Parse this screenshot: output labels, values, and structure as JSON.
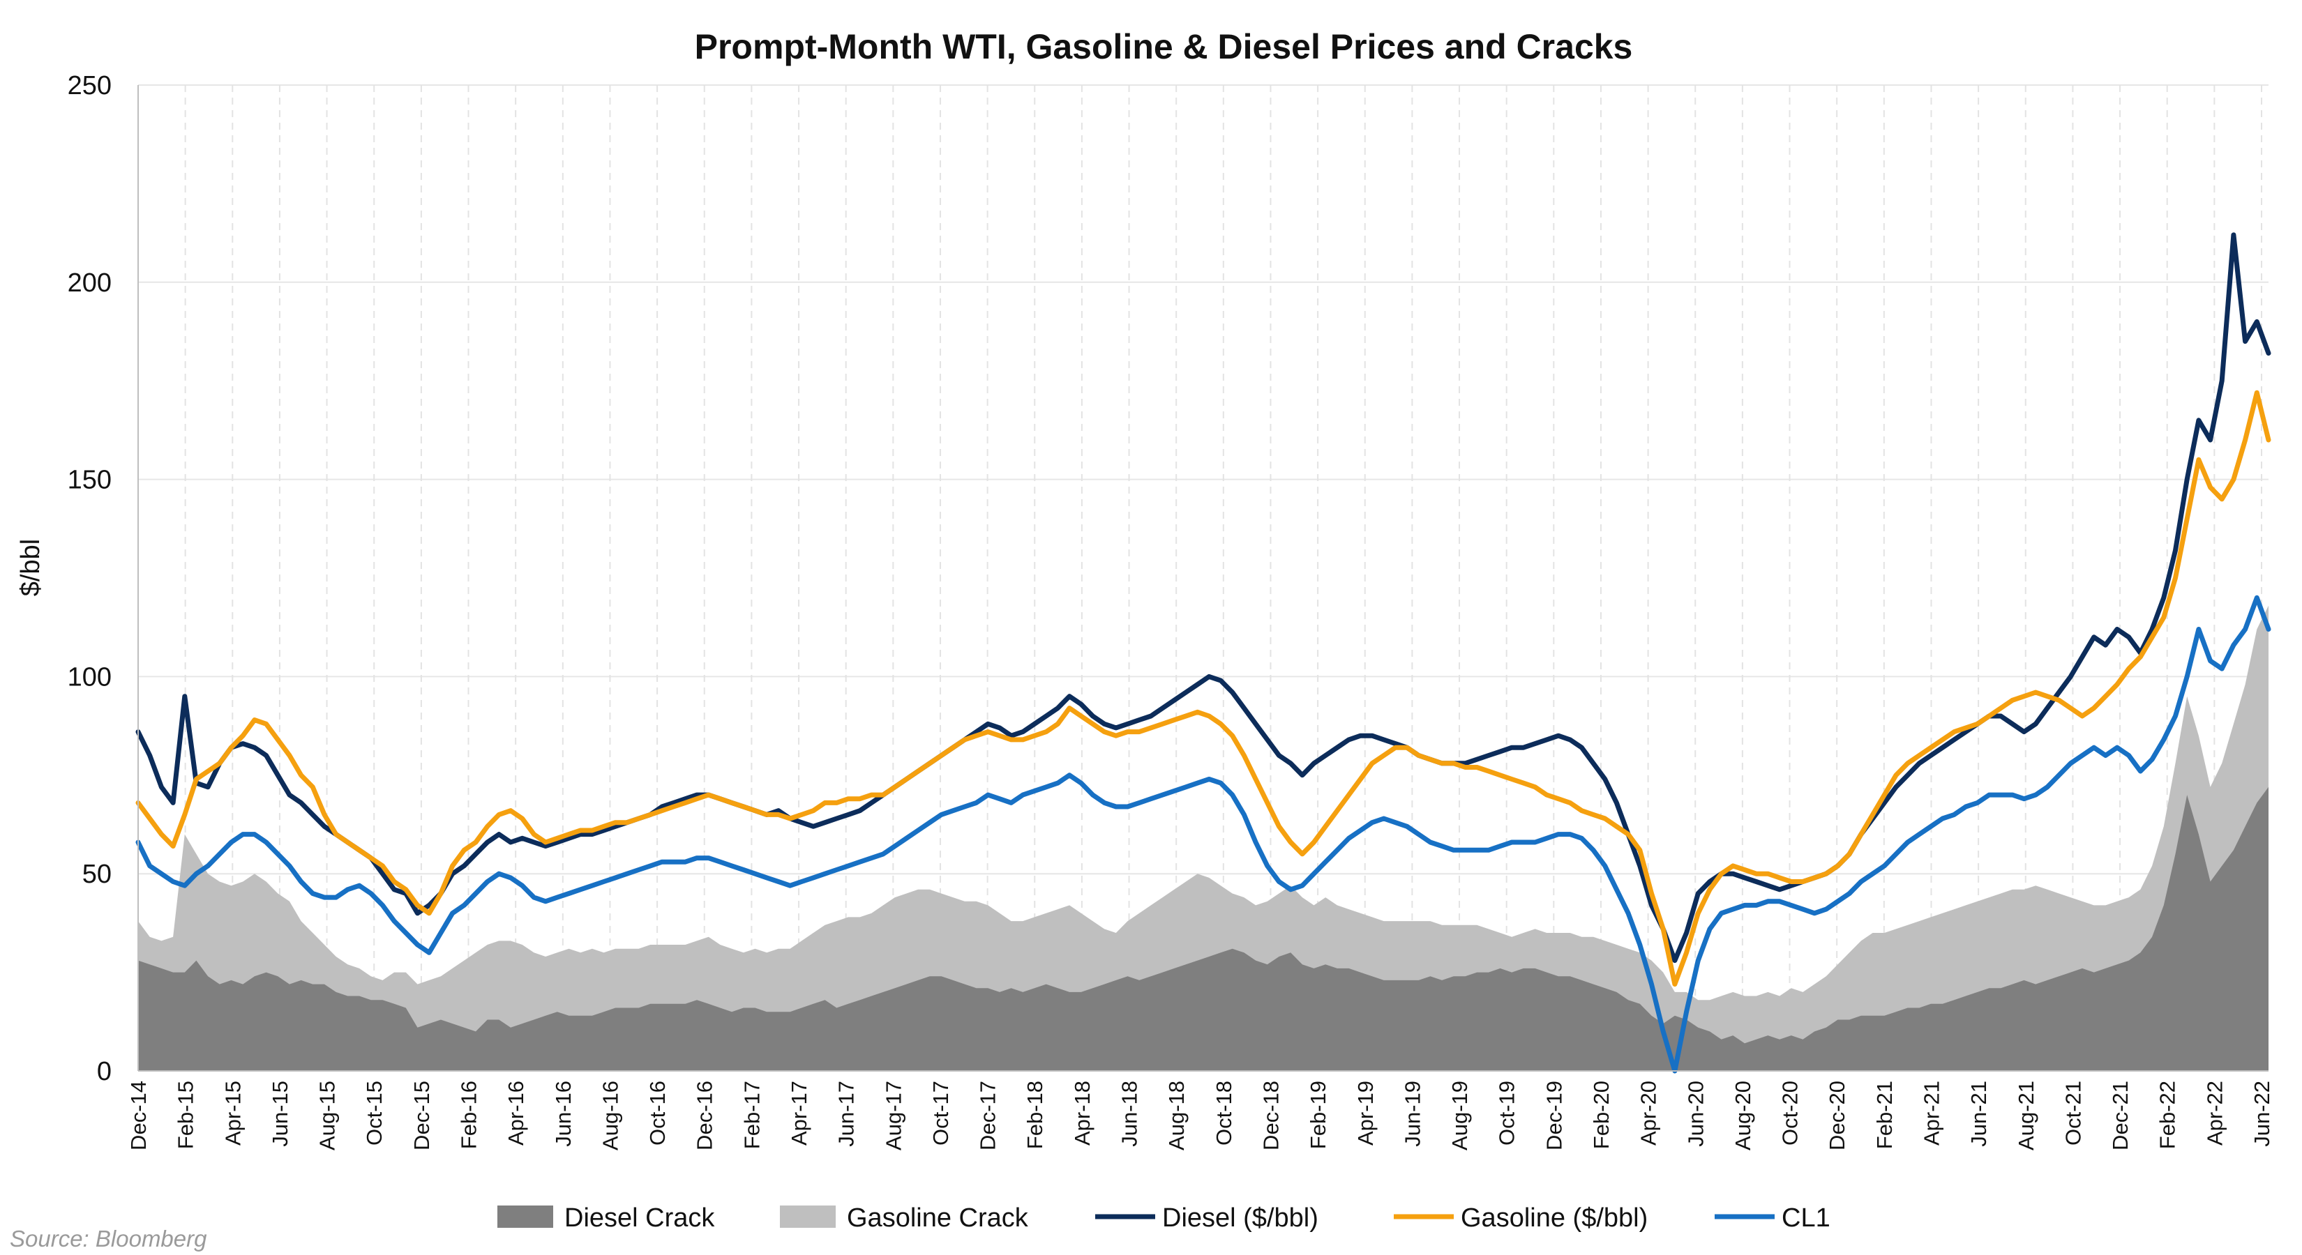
{
  "chart_data": {
    "type": "area",
    "title": "Prompt-Month WTI, Gasoline & Diesel Prices and Cracks",
    "xlabel": "",
    "ylabel": "$/bbl",
    "ylim": [
      0,
      250
    ],
    "yticks": [
      0,
      50,
      100,
      150,
      200,
      250
    ],
    "grid": true,
    "legend_position": "bottom",
    "source": "Source: Bloomberg",
    "x_tick_labels": [
      "Dec-14",
      "Feb-15",
      "Apr-15",
      "Jun-15",
      "Aug-15",
      "Oct-15",
      "Dec-15",
      "Feb-16",
      "Apr-16",
      "Jun-16",
      "Aug-16",
      "Oct-16",
      "Dec-16",
      "Feb-17",
      "Apr-17",
      "Jun-17",
      "Aug-17",
      "Oct-17",
      "Dec-17",
      "Feb-18",
      "Apr-18",
      "Jun-18",
      "Aug-18",
      "Oct-18",
      "Dec-18",
      "Feb-19",
      "Apr-19",
      "Jun-19",
      "Aug-19",
      "Oct-19",
      "Dec-19",
      "Feb-20",
      "Apr-20",
      "Jun-20",
      "Aug-20",
      "Oct-20",
      "Dec-20",
      "Feb-21",
      "Apr-21",
      "Jun-21",
      "Aug-21",
      "Oct-21",
      "Dec-21",
      "Feb-22",
      "Apr-22",
      "Jun-22"
    ],
    "series": [
      {
        "name": "Diesel Crack",
        "type": "area",
        "color": "#7f7f7f",
        "values": [
          28,
          27,
          26,
          25,
          25,
          28,
          24,
          22,
          23,
          22,
          24,
          25,
          24,
          22,
          23,
          22,
          22,
          20,
          19,
          19,
          18,
          18,
          17,
          16,
          11,
          12,
          13,
          12,
          11,
          10,
          13,
          13,
          11,
          12,
          13,
          14,
          15,
          14,
          14,
          14,
          15,
          16,
          16,
          16,
          17,
          17,
          17,
          17,
          18,
          17,
          16,
          15,
          16,
          16,
          15,
          15,
          15,
          16,
          17,
          18,
          16,
          17,
          18,
          19,
          20,
          21,
          22,
          23,
          24,
          24,
          23,
          22,
          21,
          21,
          20,
          21,
          20,
          21,
          22,
          21,
          20,
          20,
          21,
          22,
          23,
          24,
          23,
          24,
          25,
          26,
          27,
          28,
          29,
          30,
          31,
          30,
          28,
          27,
          29,
          30,
          27,
          26,
          27,
          26,
          26,
          25,
          24,
          23,
          23,
          23,
          23,
          24,
          23,
          24,
          24,
          25,
          25,
          26,
          25,
          26,
          26,
          25,
          24,
          24,
          23,
          22,
          21,
          20,
          18,
          17,
          14,
          12,
          14,
          13,
          11,
          10,
          8,
          9,
          7,
          8,
          9,
          8,
          9,
          8,
          10,
          11,
          13,
          13,
          14,
          14,
          14,
          15,
          16,
          16,
          17,
          17,
          18,
          19,
          20,
          21,
          21,
          22,
          23,
          22,
          23,
          24,
          25,
          26,
          25,
          26,
          27,
          28,
          30,
          34,
          42,
          55,
          70,
          60,
          48,
          52,
          56,
          62,
          68,
          72
        ]
      },
      {
        "name": "Gasoline Crack",
        "type": "area",
        "color": "#bfbfbf",
        "values": [
          38,
          34,
          33,
          34,
          60,
          55,
          50,
          48,
          47,
          48,
          50,
          48,
          45,
          43,
          38,
          35,
          32,
          29,
          27,
          26,
          24,
          23,
          25,
          25,
          22,
          23,
          24,
          26,
          28,
          30,
          32,
          33,
          33,
          32,
          30,
          29,
          30,
          31,
          30,
          31,
          30,
          31,
          31,
          31,
          32,
          32,
          32,
          32,
          33,
          34,
          32,
          31,
          30,
          31,
          30,
          31,
          31,
          33,
          35,
          37,
          38,
          39,
          39,
          40,
          42,
          44,
          45,
          46,
          46,
          45,
          44,
          43,
          43,
          42,
          40,
          38,
          38,
          39,
          40,
          41,
          42,
          40,
          38,
          36,
          35,
          38,
          40,
          42,
          44,
          46,
          48,
          50,
          49,
          47,
          45,
          44,
          42,
          43,
          45,
          47,
          44,
          42,
          44,
          42,
          41,
          40,
          39,
          38,
          38,
          38,
          38,
          38,
          37,
          37,
          37,
          37,
          36,
          35,
          34,
          35,
          36,
          35,
          35,
          35,
          34,
          34,
          33,
          32,
          31,
          30,
          28,
          25,
          20,
          20,
          18,
          18,
          19,
          20,
          19,
          19,
          20,
          19,
          21,
          20,
          22,
          24,
          27,
          30,
          33,
          35,
          35,
          36,
          37,
          38,
          39,
          40,
          41,
          42,
          43,
          44,
          45,
          46,
          46,
          47,
          46,
          45,
          44,
          43,
          42,
          42,
          43,
          44,
          46,
          52,
          62,
          78,
          95,
          85,
          72,
          78,
          88,
          98,
          112,
          118
        ]
      },
      {
        "name": "Diesel ($/bbl)",
        "type": "line",
        "color": "#0c2c5a",
        "values": [
          86,
          80,
          72,
          68,
          95,
          73,
          72,
          78,
          82,
          83,
          82,
          80,
          75,
          70,
          68,
          65,
          62,
          60,
          58,
          56,
          54,
          50,
          46,
          45,
          40,
          42,
          45,
          50,
          52,
          55,
          58,
          60,
          58,
          59,
          58,
          57,
          58,
          59,
          60,
          60,
          61,
          62,
          63,
          64,
          65,
          67,
          68,
          69,
          70,
          70,
          69,
          68,
          67,
          66,
          65,
          66,
          64,
          63,
          62,
          63,
          64,
          65,
          66,
          68,
          70,
          72,
          74,
          76,
          78,
          80,
          82,
          84,
          86,
          88,
          87,
          85,
          86,
          88,
          90,
          92,
          95,
          93,
          90,
          88,
          87,
          88,
          89,
          90,
          92,
          94,
          96,
          98,
          100,
          99,
          96,
          92,
          88,
          84,
          80,
          78,
          75,
          78,
          80,
          82,
          84,
          85,
          85,
          84,
          83,
          82,
          80,
          79,
          78,
          78,
          78,
          79,
          80,
          81,
          82,
          82,
          83,
          84,
          85,
          84,
          82,
          78,
          74,
          68,
          60,
          52,
          42,
          36,
          28,
          35,
          45,
          48,
          50,
          50,
          49,
          48,
          47,
          46,
          47,
          48,
          49,
          50,
          52,
          55,
          60,
          64,
          68,
          72,
          75,
          78,
          80,
          82,
          84,
          86,
          88,
          90,
          90,
          88,
          86,
          88,
          92,
          96,
          100,
          105,
          110,
          108,
          112,
          110,
          106,
          112,
          120,
          132,
          150,
          165,
          160,
          175,
          212,
          185,
          190,
          182
        ]
      },
      {
        "name": "Gasoline ($/bbl)",
        "type": "line",
        "color": "#f5a00f",
        "values": [
          68,
          64,
          60,
          57,
          65,
          74,
          76,
          78,
          82,
          85,
          89,
          88,
          84,
          80,
          75,
          72,
          65,
          60,
          58,
          56,
          54,
          52,
          48,
          46,
          42,
          40,
          45,
          52,
          56,
          58,
          62,
          65,
          66,
          64,
          60,
          58,
          59,
          60,
          61,
          61,
          62,
          63,
          63,
          64,
          65,
          66,
          67,
          68,
          69,
          70,
          69,
          68,
          67,
          66,
          65,
          65,
          64,
          65,
          66,
          68,
          68,
          69,
          69,
          70,
          70,
          72,
          74,
          76,
          78,
          80,
          82,
          84,
          85,
          86,
          85,
          84,
          84,
          85,
          86,
          88,
          92,
          90,
          88,
          86,
          85,
          86,
          86,
          87,
          88,
          89,
          90,
          91,
          90,
          88,
          85,
          80,
          74,
          68,
          62,
          58,
          55,
          58,
          62,
          66,
          70,
          74,
          78,
          80,
          82,
          82,
          80,
          79,
          78,
          78,
          77,
          77,
          76,
          75,
          74,
          73,
          72,
          70,
          69,
          68,
          66,
          65,
          64,
          62,
          60,
          56,
          45,
          36,
          22,
          30,
          40,
          46,
          50,
          52,
          51,
          50,
          50,
          49,
          48,
          48,
          49,
          50,
          52,
          55,
          60,
          65,
          70,
          75,
          78,
          80,
          82,
          84,
          86,
          87,
          88,
          90,
          92,
          94,
          95,
          96,
          95,
          94,
          92,
          90,
          92,
          95,
          98,
          102,
          105,
          110,
          115,
          125,
          140,
          155,
          148,
          145,
          150,
          160,
          172,
          160
        ]
      },
      {
        "name": "CL1",
        "type": "line",
        "color": "#1770c4",
        "values": [
          58,
          52,
          50,
          48,
          47,
          50,
          52,
          55,
          58,
          60,
          60,
          58,
          55,
          52,
          48,
          45,
          44,
          44,
          46,
          47,
          45,
          42,
          38,
          35,
          32,
          30,
          35,
          40,
          42,
          45,
          48,
          50,
          49,
          47,
          44,
          43,
          44,
          45,
          46,
          47,
          48,
          49,
          50,
          51,
          52,
          53,
          53,
          53,
          54,
          54,
          53,
          52,
          51,
          50,
          49,
          48,
          47,
          48,
          49,
          50,
          51,
          52,
          53,
          54,
          55,
          57,
          59,
          61,
          63,
          65,
          66,
          67,
          68,
          70,
          69,
          68,
          70,
          71,
          72,
          73,
          75,
          73,
          70,
          68,
          67,
          67,
          68,
          69,
          70,
          71,
          72,
          73,
          74,
          73,
          70,
          65,
          58,
          52,
          48,
          46,
          47,
          50,
          53,
          56,
          59,
          61,
          63,
          64,
          63,
          62,
          60,
          58,
          57,
          56,
          56,
          56,
          56,
          57,
          58,
          58,
          58,
          59,
          60,
          60,
          59,
          56,
          52,
          46,
          40,
          32,
          22,
          10,
          0,
          15,
          28,
          36,
          40,
          41,
          42,
          42,
          43,
          43,
          42,
          41,
          40,
          41,
          43,
          45,
          48,
          50,
          52,
          55,
          58,
          60,
          62,
          64,
          65,
          67,
          68,
          70,
          70,
          70,
          69,
          70,
          72,
          75,
          78,
          80,
          82,
          80,
          82,
          80,
          76,
          79,
          84,
          90,
          100,
          112,
          104,
          102,
          108,
          112,
          120,
          112
        ]
      }
    ]
  }
}
